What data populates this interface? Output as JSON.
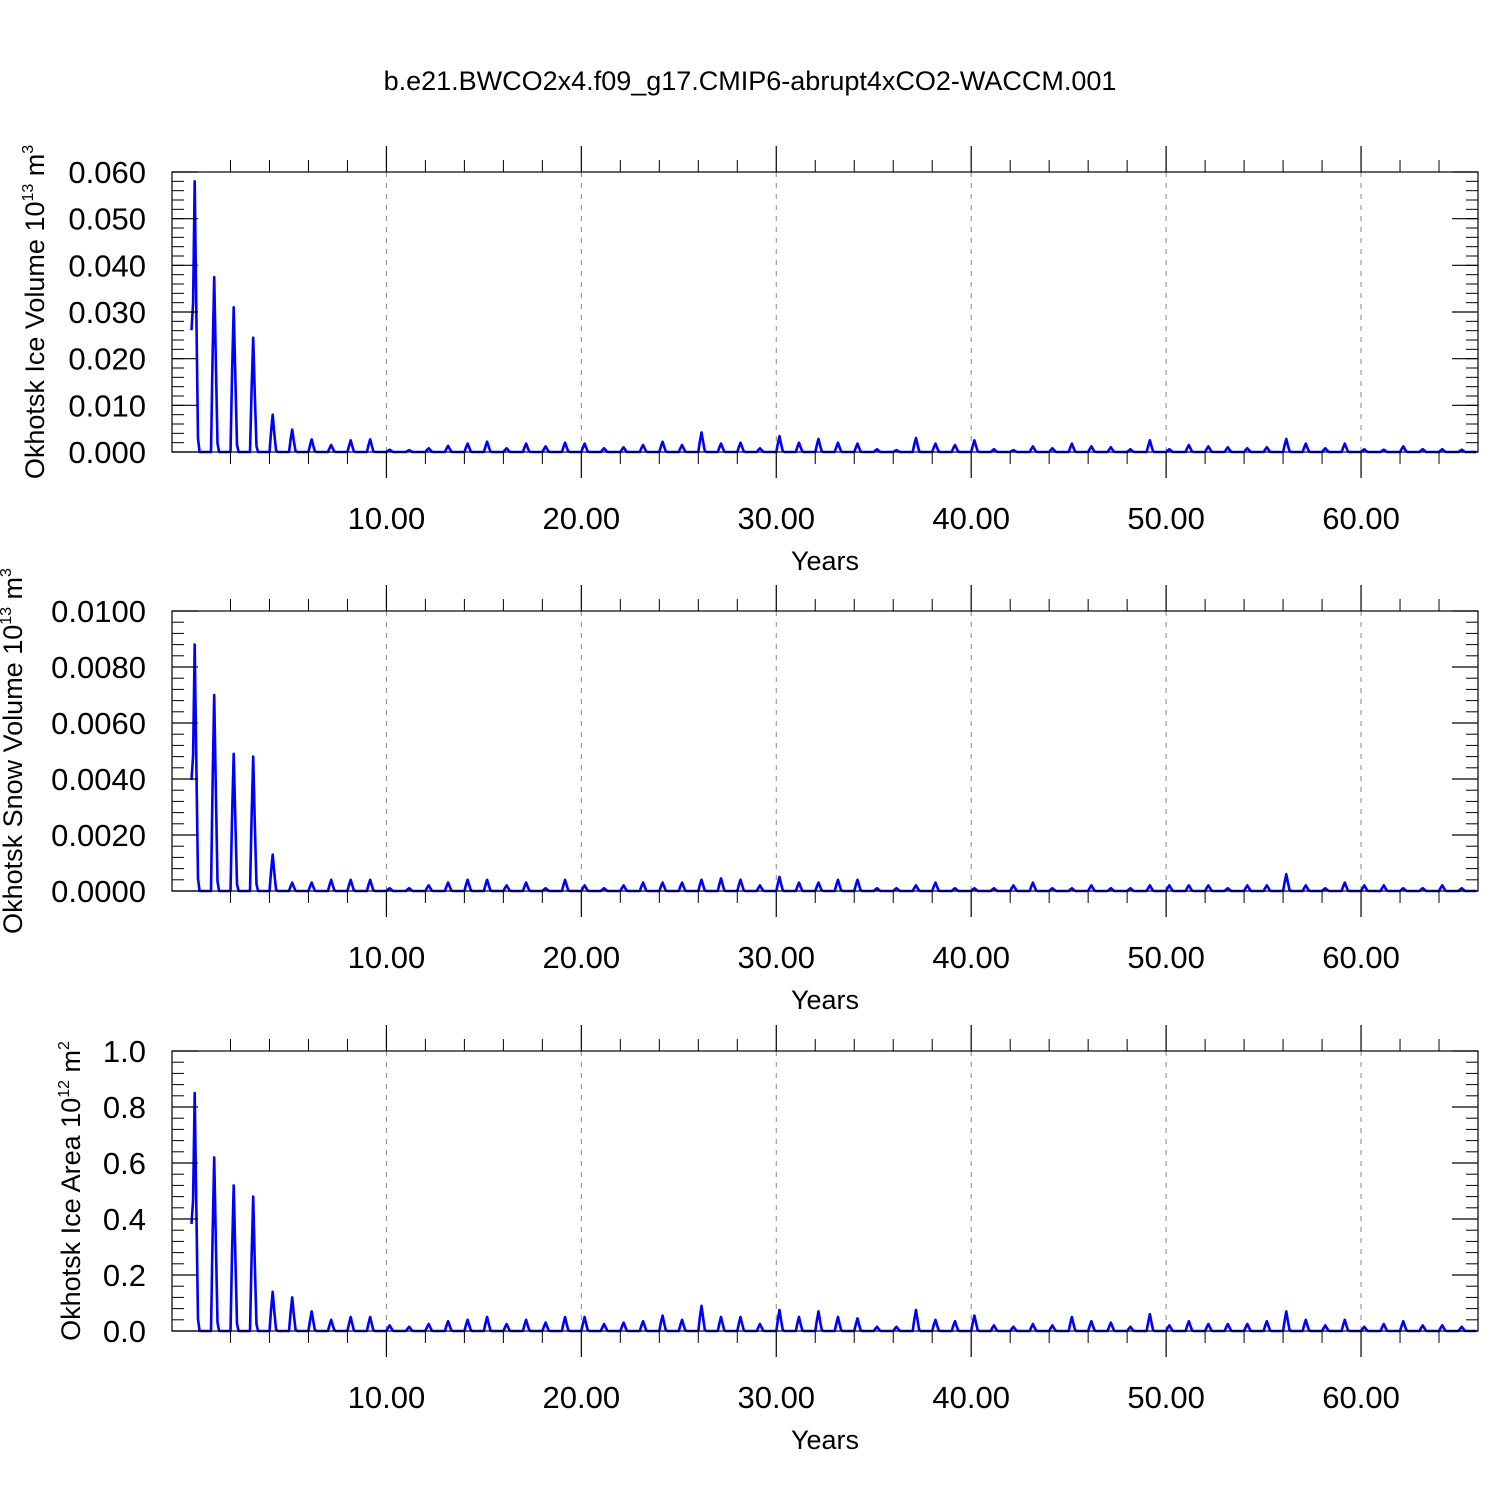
{
  "title": "b.e21.BWCO2x4.f09_g17.CMIP6-abrupt4xCO2-WACCM.001",
  "colors": {
    "series": "#0000ff",
    "axis": "#000000",
    "grid": "#888888"
  },
  "chart_data": [
    {
      "type": "line",
      "title": "b.e21.BWCO2x4.f09_g17.CMIP6-abrupt4xCO2-WACCM.001",
      "xlabel": "Years",
      "ylabel": {
        "text": "Okhotsk Ice Volume 10",
        "exponent": "13",
        "unit": "m",
        "unit_exponent": "3"
      },
      "xlim": [
        -1,
        66
      ],
      "ylim": [
        0,
        0.06
      ],
      "xticks": [
        10,
        20,
        30,
        40,
        50,
        60
      ],
      "xtick_labels": [
        "10.00",
        "20.00",
        "30.00",
        "40.00",
        "50.00",
        "60.00"
      ],
      "yticks": [
        0,
        0.01,
        0.02,
        0.03,
        0.04,
        0.05,
        0.06
      ],
      "ytick_labels": [
        "0.000",
        "0.010",
        "0.020",
        "0.030",
        "0.040",
        "0.050",
        "0.060"
      ],
      "grid": "vertical dashed at major x ticks",
      "series": [
        {
          "color": "#0000ff",
          "annual_peaks": [
            0.058,
            0.0375,
            0.031,
            0.0245,
            0.008,
            0.0048,
            0.0027,
            0.0015,
            0.0025,
            0.0027,
            0.0005,
            0.0004,
            0.0008,
            0.0013,
            0.0018,
            0.0022,
            0.0008,
            0.0018,
            0.0012,
            0.002,
            0.0018,
            0.0008,
            0.001,
            0.0015,
            0.0022,
            0.0015,
            0.0042,
            0.0018,
            0.002,
            0.0008,
            0.0034,
            0.002,
            0.0028,
            0.002,
            0.0018,
            0.0006,
            0.0004,
            0.003,
            0.0018,
            0.0015,
            0.0025,
            0.0006,
            0.0004,
            0.0012,
            0.0008,
            0.0018,
            0.0012,
            0.001,
            0.0006,
            0.0025,
            0.0006,
            0.0015,
            0.0012,
            0.001,
            0.0008,
            0.001,
            0.0028,
            0.0018,
            0.0008,
            0.0018,
            0.0006,
            0.0005,
            0.0012,
            0.0006,
            0.0006,
            0.0005
          ]
        }
      ]
    },
    {
      "type": "line",
      "xlabel": "Years",
      "ylabel": {
        "text": "Okhotsk Snow Volume 10",
        "exponent": "13",
        "unit": "m",
        "unit_exponent": "3"
      },
      "xlim": [
        -1,
        66
      ],
      "ylim": [
        0,
        0.01
      ],
      "xticks": [
        10,
        20,
        30,
        40,
        50,
        60
      ],
      "xtick_labels": [
        "10.00",
        "20.00",
        "30.00",
        "40.00",
        "50.00",
        "60.00"
      ],
      "yticks": [
        0,
        0.002,
        0.004,
        0.006,
        0.008,
        0.01
      ],
      "ytick_labels": [
        "0.0000",
        "0.0020",
        "0.0040",
        "0.0060",
        "0.0080",
        "0.0100"
      ],
      "grid": "vertical dashed at major x ticks",
      "series": [
        {
          "color": "#0000ff",
          "annual_peaks": [
            0.0088,
            0.007,
            0.0049,
            0.0048,
            0.0013,
            0.0003,
            0.0003,
            0.0004,
            0.0004,
            0.0004,
            0.0001,
            0.0001,
            0.0002,
            0.0003,
            0.0004,
            0.0004,
            0.0002,
            0.0003,
            0.0001,
            0.0004,
            0.0002,
            0.0001,
            0.0002,
            0.0003,
            0.0003,
            0.0003,
            0.0004,
            0.00045,
            0.0004,
            0.0002,
            0.0005,
            0.0003,
            0.0003,
            0.0004,
            0.0004,
            0.0001,
            0.0001,
            0.0002,
            0.0003,
            0.0001,
            0.0001,
            0.0001,
            0.0002,
            0.0003,
            0.0001,
            0.0001,
            0.0002,
            0.0001,
            0.0001,
            0.0002,
            0.0002,
            0.0002,
            0.0002,
            0.0001,
            0.0002,
            0.0002,
            0.0006,
            0.0002,
            0.0001,
            0.0003,
            0.0002,
            0.0002,
            0.0001,
            0.0001,
            0.0002,
            0.0001
          ]
        }
      ]
    },
    {
      "type": "line",
      "xlabel": "Years",
      "ylabel": {
        "text": "Okhotsk Ice Area 10",
        "exponent": "12",
        "unit": "m",
        "unit_exponent": "2"
      },
      "xlim": [
        -1,
        66
      ],
      "ylim": [
        0,
        1.0
      ],
      "xticks": [
        10,
        20,
        30,
        40,
        50,
        60
      ],
      "xtick_labels": [
        "10.00",
        "20.00",
        "30.00",
        "40.00",
        "50.00",
        "60.00"
      ],
      "yticks": [
        0,
        0.2,
        0.4,
        0.6,
        0.8,
        1.0
      ],
      "ytick_labels": [
        "0.0",
        "0.2",
        "0.4",
        "0.6",
        "0.8",
        "1.0"
      ],
      "grid": "vertical dashed at major x ticks",
      "series": [
        {
          "color": "#0000ff",
          "annual_peaks": [
            0.85,
            0.62,
            0.52,
            0.48,
            0.14,
            0.12,
            0.07,
            0.04,
            0.05,
            0.05,
            0.02,
            0.015,
            0.025,
            0.035,
            0.04,
            0.05,
            0.025,
            0.04,
            0.03,
            0.05,
            0.05,
            0.025,
            0.03,
            0.035,
            0.055,
            0.04,
            0.09,
            0.05,
            0.05,
            0.025,
            0.075,
            0.05,
            0.07,
            0.05,
            0.045,
            0.015,
            0.015,
            0.075,
            0.04,
            0.035,
            0.055,
            0.02,
            0.015,
            0.025,
            0.02,
            0.05,
            0.035,
            0.03,
            0.015,
            0.06,
            0.02,
            0.035,
            0.025,
            0.025,
            0.025,
            0.035,
            0.07,
            0.04,
            0.02,
            0.04,
            0.015,
            0.025,
            0.035,
            0.02,
            0.02,
            0.015
          ]
        }
      ]
    }
  ]
}
